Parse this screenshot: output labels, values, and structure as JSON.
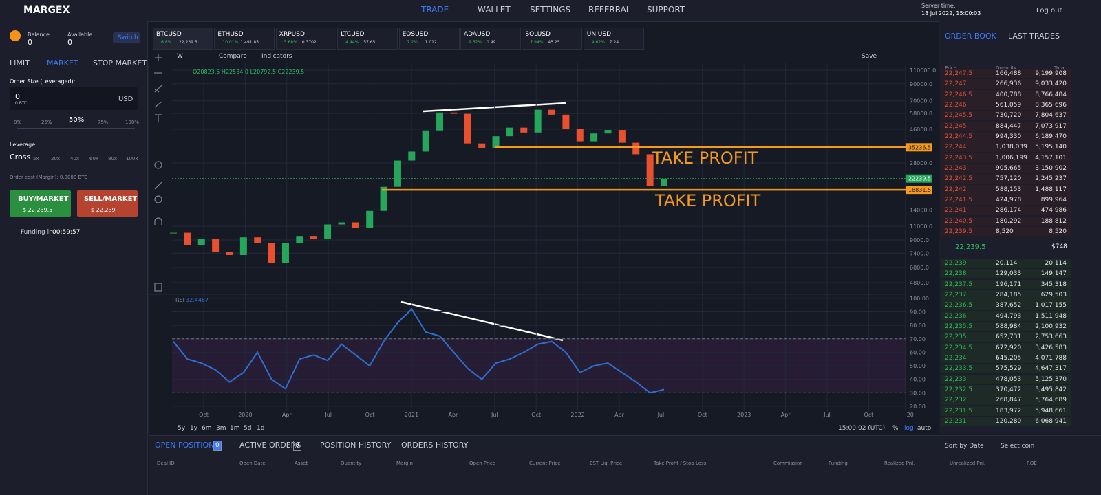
{
  "header": {
    "logo": "MARGEX",
    "nav": [
      "TRADE",
      "WALLET",
      "SETTINGS",
      "REFERRAL",
      "SUPPORT"
    ],
    "server_time_label": "Server time:",
    "server_time": "18 Jul 2022, 15:00:03",
    "logout": "Log out"
  },
  "account": {
    "balance_label": "Balance",
    "balance": "0",
    "available_label": "Available",
    "available": "0",
    "switch": "Switch"
  },
  "order_form": {
    "tabs": [
      "LIMIT",
      "MARKET",
      "STOP MARKET"
    ],
    "size_label": "Order Size (Leveraged):",
    "size": "0",
    "size_btc": "0 BTC",
    "currency": "USD",
    "slider_marks": [
      "0%",
      "25%",
      "50%",
      "75%",
      "100%"
    ],
    "leverage_label": "Leverage",
    "leverage_mode": "Cross",
    "leverage_marks": [
      "5x",
      "20x",
      "40x",
      "60x",
      "80x",
      "100x"
    ],
    "order_cost": "Order cost (Margin): 0.0000 BTC",
    "buy": "BUY/MARKET",
    "buy_price": "$ 22,239.5",
    "sell": "SELL/MARKET",
    "sell_price": "$ 22,239",
    "funding_label": "Funding in",
    "funding_time": "00:59:57"
  },
  "tickers": [
    {
      "symbol": "BTCUSD",
      "change": "6.8%",
      "price": "22,239.5"
    },
    {
      "symbol": "ETHUSD",
      "change": "10.01%",
      "price": "1,491.85"
    },
    {
      "symbol": "XRPUSD",
      "change": "5.68%",
      "price": "0.3702"
    },
    {
      "symbol": "LTCUSD",
      "change": "4.44%",
      "price": "57.65"
    },
    {
      "symbol": "EOSUSD",
      "change": "7.2%",
      "price": "1.012"
    },
    {
      "symbol": "ADAUSD",
      "change": "9.62%",
      "price": "0.49"
    },
    {
      "symbol": "SOLUSD",
      "change": "7.94%",
      "price": "45.25"
    },
    {
      "symbol": "UNIUSD",
      "change": "4.62%",
      "price": "7.24"
    }
  ],
  "toolbar": {
    "interval": "W",
    "compare": "Compare",
    "indicators": "Indicators",
    "save": "Save"
  },
  "chart_data": [
    {
      "type": "candlestick",
      "ohlc_label": "O20823.5 H22534.0 L20792.5 C22239.5",
      "log_scale": true,
      "values": [
        10000,
        8300,
        9150,
        7500,
        7200,
        9350,
        8600,
        6400,
        8600,
        9450,
        9140,
        11300,
        11650,
        10780,
        13800,
        19700,
        29000,
        33100,
        45200,
        58800,
        57700,
        37300,
        35000,
        41500,
        47100,
        43800,
        61300,
        57000,
        46300,
        38500,
        43200,
        45500,
        37700,
        31800,
        19900,
        22239.5
      ],
      "up_color": "#26a65b",
      "down_color": "#e8502f",
      "ylim": [
        4040,
        121700
      ],
      "yticks": [
        {
          "value": 110000,
          "label": "110000.0"
        },
        {
          "value": 90000,
          "label": "90000.0"
        },
        {
          "value": 70000,
          "label": "70000.0"
        },
        {
          "value": 58000,
          "label": "58000.0"
        },
        {
          "value": 46000,
          "label": "46000.0"
        },
        {
          "value": 28000,
          "label": "28000.0"
        },
        {
          "value": 14000,
          "label": "14000.0"
        },
        {
          "value": 11000,
          "label": "11000.0"
        },
        {
          "value": 9000,
          "label": "9000.0"
        },
        {
          "value": 7400,
          "label": "7400.0"
        },
        {
          "value": 6000,
          "label": "6000.0"
        },
        {
          "value": 4800,
          "label": "4800.0"
        }
      ],
      "price_lines": [
        {
          "value": 35236.5,
          "label": "35236.5",
          "color": "#f59a1c",
          "annotation": "TAKE PROFIT"
        },
        {
          "value": 18831.5,
          "label": "18831.5",
          "color": "#f59a1c",
          "annotation": "TAKE PROFIT"
        }
      ],
      "current_price": {
        "value": 22239.5,
        "label": "22239.5",
        "color": "#26a65b"
      },
      "x_labels": [
        "Oct",
        "2020",
        "Apr",
        "Jul",
        "Oct",
        "2021",
        "Apr",
        "Jul",
        "Oct",
        "2022",
        "Apr",
        "Jul",
        "Oct",
        "2023",
        "Apr",
        "Jul",
        "Oct",
        "20"
      ],
      "grid": true
    },
    {
      "type": "line",
      "name": "RSI",
      "value_label": "32.4467",
      "color": "#2f6fd1",
      "values": [
        68,
        55,
        52,
        47,
        38,
        45,
        60,
        40,
        33,
        55,
        58,
        54,
        66,
        58,
        50,
        68,
        82,
        92,
        75,
        72,
        60,
        48,
        40,
        52,
        55,
        60,
        66,
        68,
        60,
        45,
        50,
        52,
        45,
        38,
        30,
        32.4467
      ],
      "band": [
        30,
        70
      ],
      "ylim": [
        16.4,
        103
      ],
      "yticks": [
        {
          "value": 100,
          "label": "100.00"
        },
        {
          "value": 90,
          "label": "90.00"
        },
        {
          "value": 80,
          "label": "80.00"
        },
        {
          "value": 70,
          "label": "70.00"
        },
        {
          "value": 60,
          "label": "60.00"
        },
        {
          "value": 50,
          "label": "50.00"
        },
        {
          "value": 40,
          "label": "40.00"
        },
        {
          "value": 30,
          "label": "30.00"
        },
        {
          "value": 20,
          "label": "20.00"
        }
      ]
    }
  ],
  "chart_footer": {
    "ranges": [
      "5y",
      "1y",
      "6m",
      "3m",
      "1m",
      "5d",
      "1d"
    ],
    "time": "15:00:02 (UTC)",
    "scale_options": [
      "%",
      "log",
      "auto"
    ]
  },
  "order_book": {
    "tabs": [
      "ORDER BOOK",
      "LAST TRADES"
    ],
    "headers": [
      "Price",
      "Quantity",
      "Total"
    ],
    "asks": [
      [
        "22,247.5",
        "166,488",
        "9,199,908"
      ],
      [
        "22,247",
        "266,936",
        "9,033,420"
      ],
      [
        "22,246.5",
        "400,788",
        "8,766,484"
      ],
      [
        "22,246",
        "561,059",
        "8,365,696"
      ],
      [
        "22,245.5",
        "730,720",
        "7,804,637"
      ],
      [
        "22,245",
        "884,447",
        "7,073,917"
      ],
      [
        "22,244.5",
        "994,330",
        "6,189,470"
      ],
      [
        "22,244",
        "1,038,039",
        "5,195,140"
      ],
      [
        "22,243.5",
        "1,006,199",
        "4,157,101"
      ],
      [
        "22,243",
        "905,665",
        "3,150,902"
      ],
      [
        "22,242.5",
        "757,120",
        "2,245,237"
      ],
      [
        "22,242",
        "588,153",
        "1,488,117"
      ],
      [
        "22,241.5",
        "424,978",
        "899,964"
      ],
      [
        "22,241",
        "286,174",
        "474,986"
      ],
      [
        "22,240.5",
        "180,292",
        "188,812"
      ],
      [
        "22,239.5",
        "8,520",
        "8,520"
      ]
    ],
    "mid_price": "22,239.5",
    "mid_value": "$748",
    "bids": [
      [
        "22,239",
        "20,114",
        "20,114"
      ],
      [
        "22,238",
        "129,033",
        "149,147"
      ],
      [
        "22,237.5",
        "196,171",
        "345,318"
      ],
      [
        "22,237",
        "284,185",
        "629,503"
      ],
      [
        "22,236.5",
        "387,652",
        "1,017,155"
      ],
      [
        "22,236",
        "494,793",
        "1,511,948"
      ],
      [
        "22,235.5",
        "588,984",
        "2,100,932"
      ],
      [
        "22,235",
        "652,731",
        "2,753,663"
      ],
      [
        "22,234.5",
        "672,920",
        "3,426,583"
      ],
      [
        "22,234",
        "645,205",
        "4,071,788"
      ],
      [
        "22,233.5",
        "575,529",
        "4,647,317"
      ],
      [
        "22,233",
        "478,053",
        "5,125,370"
      ],
      [
        "22,232.5",
        "370,472",
        "5,495,842"
      ],
      [
        "22,232",
        "268,847",
        "5,764,689"
      ],
      [
        "22,231.5",
        "183,972",
        "5,948,661"
      ],
      [
        "22,231",
        "120,280",
        "6,068,941"
      ]
    ]
  },
  "positions": {
    "tabs": [
      {
        "label": "OPEN POSITIONS",
        "count": "0"
      },
      {
        "label": "ACTIVE ORDERS",
        "count": "0"
      },
      {
        "label": "POSITION HISTORY"
      },
      {
        "label": "ORDERS HISTORY"
      }
    ],
    "sort": "Sort by Date",
    "coin": "Select coin",
    "headers": [
      "Deal ID",
      "Open Date",
      "Asset",
      "Quantity",
      "Margin",
      "Open Price",
      "Current Price",
      "EST Liq. Price",
      "Take Profit / Stop Loss",
      "Commission",
      "Funding",
      "Realized Pnl.",
      "Unrealized Pnl.",
      "ROE"
    ]
  }
}
